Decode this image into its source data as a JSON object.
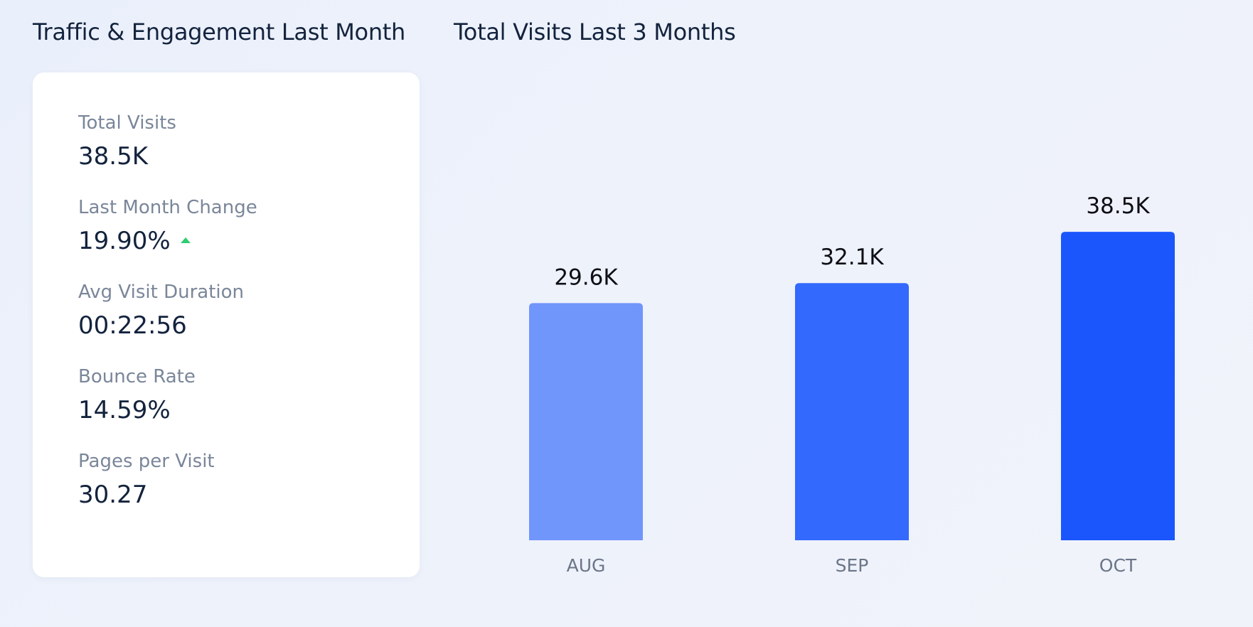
{
  "engagement": {
    "title": "Traffic & Engagement Last Month",
    "metrics": [
      {
        "label": "Total Visits",
        "value": "38.5K"
      },
      {
        "label": "Last Month Change",
        "value": "19.90%",
        "trend": "up"
      },
      {
        "label": "Avg Visit Duration",
        "value": "00:22:56"
      },
      {
        "label": "Bounce Rate",
        "value": "14.59%"
      },
      {
        "label": "Pages per Visit",
        "value": "30.27"
      }
    ],
    "trend_up_color": "#2ecc71"
  },
  "visits_chart": {
    "title": "Total Visits Last 3 Months",
    "chart_data": {
      "type": "bar",
      "categories": [
        "AUG",
        "SEP",
        "OCT"
      ],
      "values": [
        29.6,
        32.1,
        38.5
      ],
      "data_labels": [
        "29.6K",
        "32.1K",
        "38.5K"
      ],
      "unit": "K",
      "ylim": [
        0,
        42
      ],
      "grid": false,
      "colors": [
        "#7096fc",
        "#3369fc",
        "#1a56fc"
      ]
    }
  }
}
